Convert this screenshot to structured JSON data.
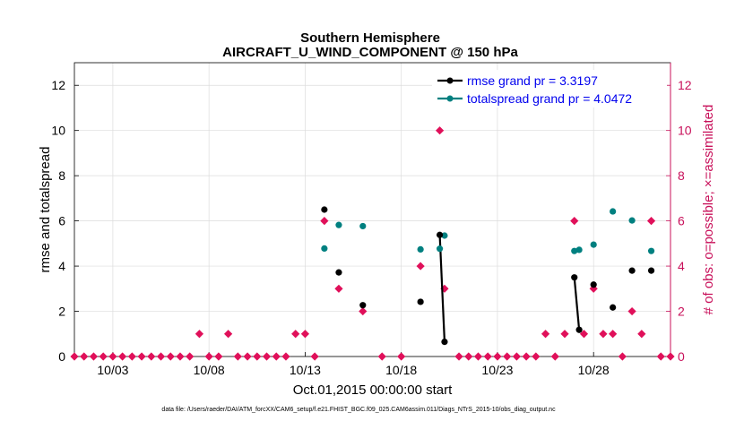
{
  "chart_data": {
    "type": "scatter",
    "title_line1": "Southern Hemisphere",
    "title_line2": "AIRCRAFT_U_WIND_COMPONENT @ 150 hPa",
    "xlabel": "Oct.01,2015 00:00:00 start",
    "ylabel_left": "rmse and totalspread",
    "ylabel_right": "# of obs: o=possible; ×=assimilated",
    "footer": "data file: /Users/raeder/DAI/ATM_forcXX/CAM6_setup/f.e21.FHIST_BGC.f09_025.CAM6assim.011/Diags_NTrS_2015-10/obs_diag_output.nc",
    "xlim": [
      1,
      32
    ],
    "ylim_left": [
      0,
      13
    ],
    "ylim_right": [
      0,
      13
    ],
    "x_ticks": [
      3,
      8,
      13,
      18,
      23,
      28
    ],
    "x_tick_labels": [
      "10/03",
      "10/08",
      "10/13",
      "10/18",
      "10/23",
      "10/28"
    ],
    "y_ticks_left": [
      0,
      2,
      4,
      6,
      8,
      10,
      12
    ],
    "y_tick_labels_left": [
      "0",
      "2",
      "4",
      "6",
      "8",
      "10",
      "12"
    ],
    "y_ticks_right": [
      0,
      2,
      4,
      6,
      8,
      10,
      12
    ],
    "y_tick_labels_right": [
      "0",
      "2",
      "4",
      "6",
      "8",
      "10",
      "12"
    ],
    "grid": true,
    "legend_position": "top-right",
    "colors": {
      "rmse": "#000000",
      "spread": "#008080",
      "obs": "#e0105a",
      "right_axis": "#c8105a",
      "legend_text": "#0000ee"
    },
    "series": [
      {
        "name": "rmse",
        "legend": "rmse grand pr = 3.3197",
        "x": [
          14.0,
          14.75,
          16.0,
          19.0,
          20.0,
          20.25,
          27.0,
          27.25,
          28.0,
          29.0,
          30.0,
          31.0
        ],
        "y": [
          6.5,
          3.72,
          2.27,
          2.42,
          5.38,
          0.65,
          3.5,
          1.18,
          3.18,
          2.17,
          3.8,
          3.8
        ],
        "segments": [
          [
            20.0,
            5.38,
            20.25,
            0.65
          ],
          [
            27.0,
            3.5,
            27.25,
            1.18
          ]
        ]
      },
      {
        "name": "totalspread",
        "legend": "totalspread grand pr = 4.0472",
        "x": [
          14.0,
          14.75,
          16.0,
          19.0,
          20.0,
          20.25,
          27.0,
          27.25,
          28.0,
          29.0,
          30.0,
          31.0
        ],
        "y": [
          4.78,
          5.82,
          5.77,
          4.74,
          4.77,
          5.35,
          4.67,
          4.72,
          4.95,
          6.42,
          6.02,
          4.67
        ]
      },
      {
        "name": "obs_possible",
        "x": [
          1,
          1.5,
          2,
          2.5,
          3,
          3.5,
          4,
          4.5,
          5,
          5.5,
          6,
          6.5,
          7,
          7.5,
          8,
          8.5,
          9,
          9.5,
          10,
          10.5,
          11,
          11.5,
          12,
          12.5,
          13,
          13.5,
          14,
          14.75,
          16,
          17,
          18,
          19,
          20,
          20.25,
          21,
          21.5,
          22,
          22.5,
          23,
          23.5,
          24,
          24.5,
          25,
          25.5,
          26,
          26.5,
          27,
          27.5,
          28,
          28.5,
          29,
          29.5,
          30,
          30.5,
          31,
          31.5,
          32
        ],
        "y": [
          0,
          0,
          0,
          0,
          0,
          0,
          0,
          0,
          0,
          0,
          0,
          0,
          0,
          1,
          0,
          0,
          1,
          0,
          0,
          0,
          0,
          0,
          0,
          1,
          1,
          0,
          6,
          3,
          2,
          0,
          0,
          4,
          10,
          3,
          0,
          0,
          0,
          0,
          0,
          0,
          0,
          0,
          0,
          1,
          0,
          1,
          6,
          1,
          3,
          1,
          1,
          0,
          2,
          1,
          6,
          0,
          0
        ]
      }
    ]
  }
}
